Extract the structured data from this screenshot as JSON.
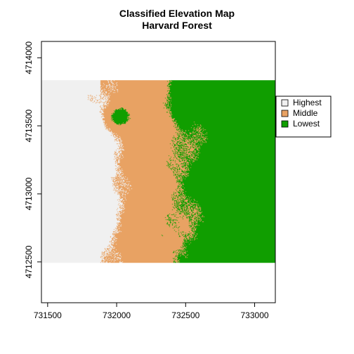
{
  "title": "Classified Elevation Map",
  "subtitle": "Harvard Forest",
  "colors": {
    "highest": "#f0f0f0",
    "middle": "#e8a263",
    "lowest": "#109e00",
    "axis": "#000000"
  },
  "chart_data": {
    "type": "heatmap",
    "title": "Classified Elevation Map",
    "subtitle": "Harvard Forest",
    "xlabel": "",
    "ylabel": "",
    "xlim": [
      731455,
      733150
    ],
    "ylim": [
      4712200,
      4714120
    ],
    "x_ticks": [
      731500,
      732000,
      732500,
      733000
    ],
    "y_ticks": [
      4712500,
      4713000,
      4713500,
      4714000
    ],
    "raster_extent": {
      "xmin": 731455,
      "xmax": 733150,
      "ymin": 4712495,
      "ymax": 4713835
    },
    "legend": {
      "placement": "right",
      "entries": [
        {
          "label": "Highest",
          "color": "#f0f0f0"
        },
        {
          "label": "Middle",
          "color": "#e8a263"
        },
        {
          "label": "Lowest",
          "color": "#109e00"
        }
      ]
    },
    "grid": false
  }
}
